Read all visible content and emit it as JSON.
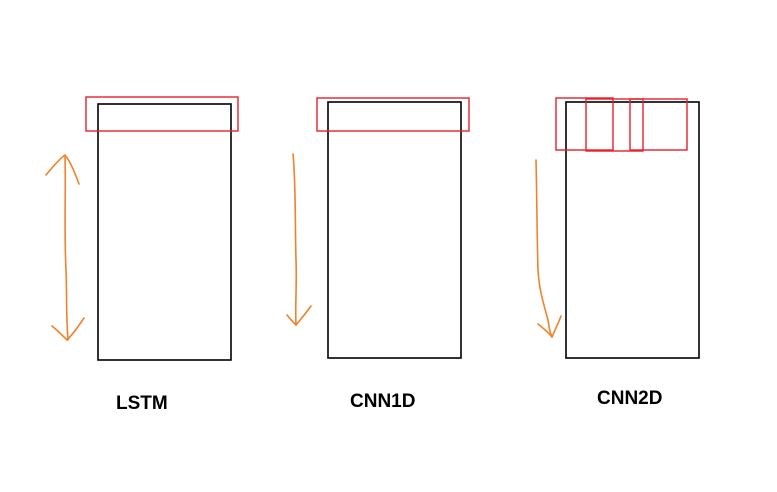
{
  "diagram": {
    "panels": [
      {
        "id": "lstm",
        "label": "LSTM",
        "arrow": "double-headed vertical"
      },
      {
        "id": "cnn1d",
        "label": "CNN1D",
        "arrow": "downward"
      },
      {
        "id": "cnn2d",
        "label": "CNN2D",
        "arrow": "downward"
      }
    ]
  },
  "colors": {
    "box_stroke": "#000000",
    "window_stroke": "#e8202a",
    "arrow_stroke": "#f0822a",
    "background": "#ffffff"
  }
}
